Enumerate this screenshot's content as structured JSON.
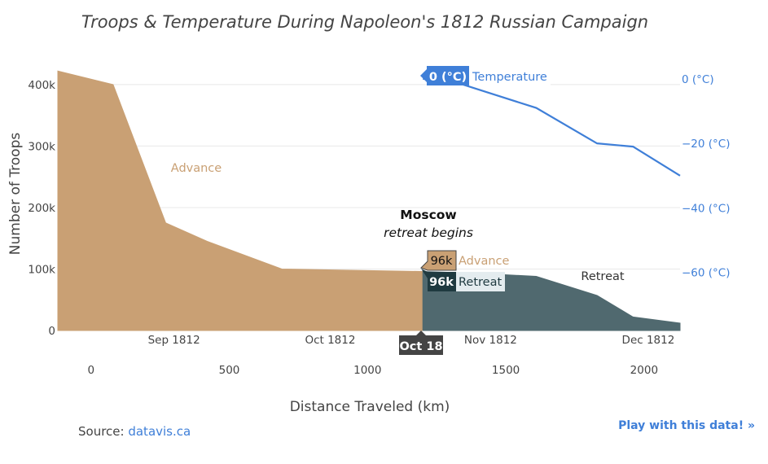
{
  "chart_data": {
    "type": "area",
    "title": "Troops & Temperature During Napoleon's 1812 Russian Campaign",
    "xlabel": "Distance Traveled (km)",
    "ylabel": "Number of Troops",
    "xlim": [
      -120,
      2130
    ],
    "ylim": [
      0,
      425000
    ],
    "x_ticks": [
      0,
      500,
      1000,
      1500,
      2000
    ],
    "x_tick_labels": [
      "0",
      "500",
      "1000",
      "1500",
      "2000"
    ],
    "y_ticks": [
      0,
      100000,
      200000,
      300000,
      400000
    ],
    "y_tick_labels": [
      "0",
      "100k",
      "200k",
      "300k",
      "400k"
    ],
    "y2_range": [
      -78,
      3
    ],
    "y2_ticks": [
      0,
      -20,
      -40,
      -60
    ],
    "y2_tick_labels": [
      "0 (°C)",
      "−20 (°C)",
      "−40 (°C)",
      "−60 (°C)"
    ],
    "date_ticks": [
      {
        "x": 300,
        "label": "Sep 1812"
      },
      {
        "x": 865,
        "label": "Oct 1812"
      },
      {
        "x": 1445,
        "label": "Nov 1812"
      },
      {
        "x": 2015,
        "label": "Dec 1812"
      }
    ],
    "series": [
      {
        "name": "Advance",
        "color": "#c9a074",
        "x": [
          -120,
          80,
          270,
          420,
          690,
          1200
        ],
        "y": [
          422000,
          400000,
          175000,
          145000,
          100000,
          96000
        ]
      },
      {
        "name": "Retreat",
        "color": "#50696f",
        "x": [
          1200,
          1400,
          1610,
          1830,
          1960,
          2130
        ],
        "y": [
          96000,
          93000,
          88000,
          57000,
          22000,
          12000
        ]
      },
      {
        "name": "Temperature",
        "color": "#3f7fd8",
        "x": [
          1200,
          1280,
          1610,
          1830,
          1960,
          2130
        ],
        "y": [
          0,
          0,
          -9,
          -20,
          -21,
          -30
        ]
      }
    ],
    "annotations": {
      "moscow": "Moscow",
      "retreat_begins": "retreat begins",
      "advance_label": "Advance",
      "retreat_label": "Retreat"
    },
    "hover": {
      "date": "Oct 18",
      "advance_value": "96k",
      "advance_name": "Advance",
      "retreat_value": "96k",
      "retreat_name": "Retreat",
      "temp_value": "0 (°C)",
      "temp_name": "Temperature"
    }
  },
  "footer": {
    "source_prefix": "Source: ",
    "source_link": "datavis.ca",
    "play_link": "Play with this data! »"
  }
}
